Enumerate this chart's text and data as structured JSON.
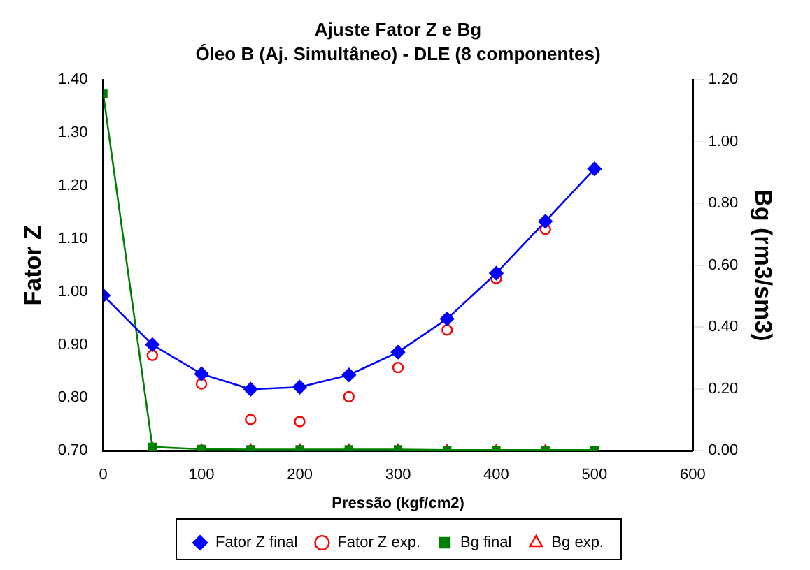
{
  "chart_data": {
    "type": "line",
    "title": "Ajuste Fator Z e Bg",
    "subtitle": "Óleo B (Aj. Simultâneo) - DLE (8 componentes)",
    "xlabel": "Pressão (kgf/cm2)",
    "ylabel": "Fator Z",
    "y2label": "Bg (rm3/sm3)",
    "x": [
      0,
      50,
      100,
      150,
      200,
      250,
      300,
      350,
      400,
      450,
      500
    ],
    "series": [
      {
        "name": "Fator Z final",
        "type": "line",
        "color": "#0000ff",
        "marker": "diamond",
        "values": [
          0.993,
          0.9,
          0.845,
          0.816,
          0.82,
          0.843,
          0.886,
          0.949,
          1.035,
          1.133,
          1.232
        ]
      },
      {
        "name": "Fator Z exp.",
        "type": "scatter",
        "color": "#ff0000",
        "marker": "circle",
        "x": [
          50,
          100,
          150,
          200,
          250,
          300,
          350,
          400,
          450
        ],
        "values": [
          0.88,
          0.826,
          0.759,
          0.755,
          0.802,
          0.857,
          0.928,
          1.025,
          1.118
        ]
      },
      {
        "name": "Bg final",
        "type": "line",
        "color": "#008000",
        "marker": "square",
        "axis": "y2",
        "values": [
          1.155,
          0.012,
          0.005,
          0.004,
          0.004,
          0.004,
          0.004,
          0.002,
          0.002,
          0.002,
          0.002
        ]
      },
      {
        "name": "Bg exp.",
        "type": "scatter",
        "color": "#ff0000",
        "marker": "triangle",
        "axis": "y2",
        "x": [
          50,
          100,
          150,
          200,
          250,
          300,
          350,
          400,
          450
        ],
        "values": [
          0.01,
          0.004,
          0.004,
          0.004,
          0.004,
          0.004,
          0.002,
          0.002,
          0.002
        ]
      }
    ],
    "xlim": [
      0,
      600
    ],
    "xticks": [
      0,
      100,
      200,
      300,
      400,
      500,
      600
    ],
    "ylim": [
      0.7,
      1.4
    ],
    "yticks": [
      {
        "value": 0.7,
        "label": "0.70"
      },
      {
        "value": 0.8,
        "label": "0.80"
      },
      {
        "value": 0.9,
        "label": "0.90"
      },
      {
        "value": 1.0,
        "label": "1.00"
      },
      {
        "value": 1.1,
        "label": "1.10"
      },
      {
        "value": 1.2,
        "label": "1.20"
      },
      {
        "value": 1.3,
        "label": "1.30"
      },
      {
        "value": 1.4,
        "label": "1.40"
      }
    ],
    "y2lim": [
      0,
      1.2
    ],
    "y2ticks": [
      {
        "value": 0,
        "label": "0.00"
      },
      {
        "value": 0.2,
        "label": "0.20"
      },
      {
        "value": 0.4,
        "label": "0.40"
      },
      {
        "value": 0.6,
        "label": "0.60"
      },
      {
        "value": 0.8,
        "label": "0.80"
      },
      {
        "value": 1.0,
        "label": "1.00"
      },
      {
        "value": 1.2,
        "label": "1.20"
      }
    ],
    "grid": false,
    "legend": "bottom"
  }
}
